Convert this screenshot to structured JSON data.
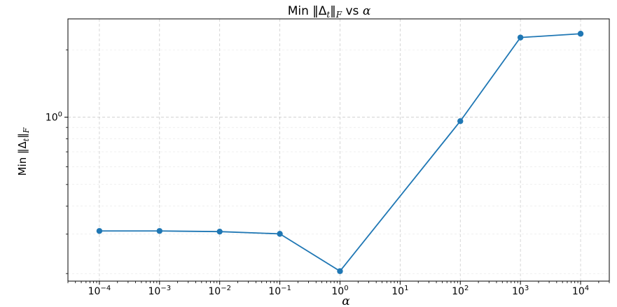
{
  "chart_data": {
    "type": "line",
    "title": {
      "prefix": "Min ",
      "norm_open": "‖Δ",
      "norm_sub_t": "t",
      "norm_close": "‖",
      "norm_sub_F": "F",
      "middle": " vs ",
      "alpha": "α"
    },
    "xlabel": "α",
    "ylabel": {
      "prefix": "Min ",
      "norm_open": "‖Δ",
      "norm_sub_t": "t",
      "norm_close": "‖",
      "norm_sub_F": "F"
    },
    "xscale": "log",
    "yscale": "log",
    "xlim": [
      3e-05,
      30000
    ],
    "ylim": [
      0.185,
      2.75
    ],
    "grid": true,
    "x_ticks": [
      {
        "base": "10",
        "exp": "−4"
      },
      {
        "base": "10",
        "exp": "−3"
      },
      {
        "base": "10",
        "exp": "−2"
      },
      {
        "base": "10",
        "exp": "−1"
      },
      {
        "base": "10",
        "exp": "0"
      },
      {
        "base": "10",
        "exp": "1"
      },
      {
        "base": "10",
        "exp": "2"
      },
      {
        "base": "10",
        "exp": "3"
      },
      {
        "base": "10",
        "exp": "4"
      }
    ],
    "y_ticks": [
      {
        "base": "10",
        "exp": "0"
      }
    ],
    "series": [
      {
        "color": "#1f77b4",
        "x": [
          0.0001,
          0.001,
          0.01,
          0.1,
          1,
          10,
          100,
          1000,
          10000
        ],
        "y": [
          0.31,
          0.31,
          0.308,
          0.301,
          0.205,
          null,
          0.96,
          2.27,
          2.36
        ]
      }
    ]
  }
}
